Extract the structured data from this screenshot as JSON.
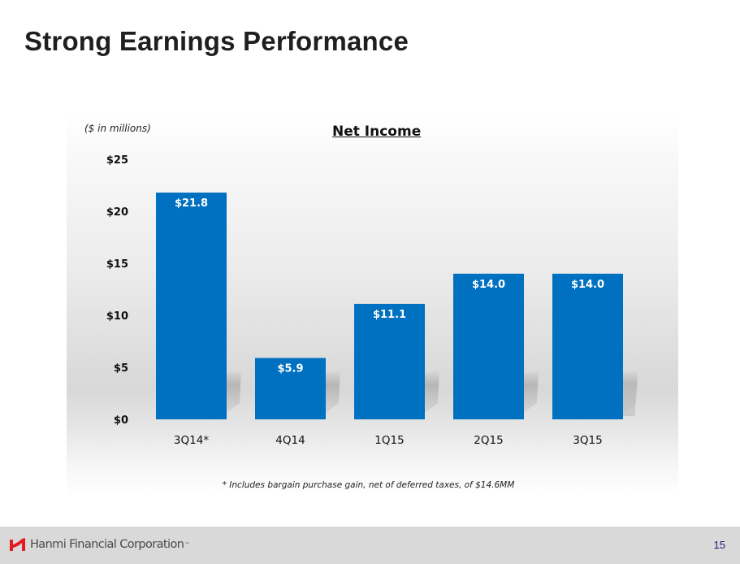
{
  "slide": {
    "title": "Strong Earnings Performance",
    "page_number": "15"
  },
  "chart_data": {
    "type": "bar",
    "title": "Net Income",
    "units_note": "($ in millions)",
    "categories": [
      "3Q14*",
      "4Q14",
      "1Q15",
      "2Q15",
      "3Q15"
    ],
    "values": [
      21.8,
      5.9,
      11.1,
      14.0,
      14.0
    ],
    "data_labels": [
      "$21.8",
      "$5.9",
      "$11.1",
      "$14.0",
      "$14.0"
    ],
    "xlabel": "",
    "ylabel": "",
    "ylim": [
      0,
      25
    ],
    "yticks": [
      0,
      5,
      10,
      15,
      20,
      25
    ],
    "ytick_labels": [
      "$0",
      "$5",
      "$10",
      "$15",
      "$20",
      "$25"
    ],
    "grid": false,
    "legend": "none",
    "bar_color": "#0070c0",
    "footnote": "* Includes bargain purchase gain, net of deferred taxes, of $14.6MM"
  },
  "footer": {
    "company_name": "Hanmi Financial Corporation",
    "trademark": "™",
    "logo_color": "#e31b23"
  }
}
